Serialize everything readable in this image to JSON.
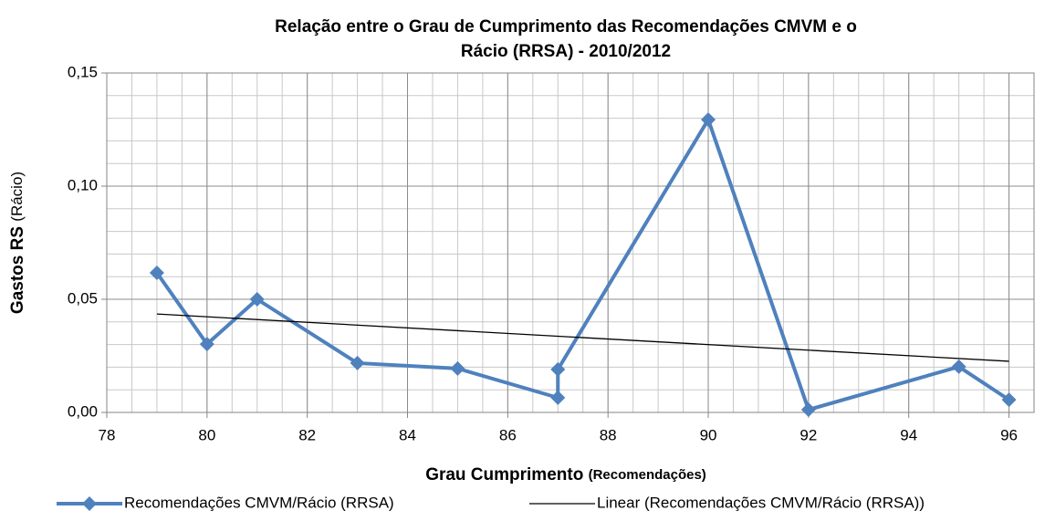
{
  "chart_data": {
    "type": "line",
    "title_lines": [
      "Relação entre o Grau de Cumprimento das Recomendações CMVM e o",
      "Rácio (RRSA) - 2010/2012"
    ],
    "x_label": "Grau Cumprimento",
    "x_label_note": "(Recomendações)",
    "y_label": "Gastos RS",
    "y_label_note": "(Rácio)",
    "series": [
      {
        "name": "Recomendações CMVM/Rácio (RRSA)",
        "color": "#4f81bd",
        "x": [
          79,
          80,
          81,
          83,
          85,
          87,
          87,
          90,
          92,
          95,
          96
        ],
        "values": [
          0.0617,
          0.0302,
          0.05,
          0.0218,
          0.0194,
          0.0065,
          0.019,
          0.1294,
          0.0012,
          0.0202,
          0.0056
        ]
      },
      {
        "name": "Linear (Recomendações CMVM/Rácio (RRSA))",
        "color": "#000000",
        "x": [
          79,
          96
        ],
        "values": [
          0.0435,
          0.0226
        ]
      }
    ],
    "xlim": [
      78,
      96.5
    ],
    "xticks": [
      78,
      80,
      82,
      84,
      86,
      88,
      90,
      92,
      94,
      96
    ],
    "ylim": [
      0,
      0.15
    ],
    "yticks": [
      {
        "value": 0,
        "label": "0,00"
      },
      {
        "value": 0.05,
        "label": "0,05"
      },
      {
        "value": 0.1,
        "label": "0,10"
      },
      {
        "value": 0.15,
        "label": "0,15"
      }
    ],
    "grid": true,
    "legend": "bottom"
  }
}
